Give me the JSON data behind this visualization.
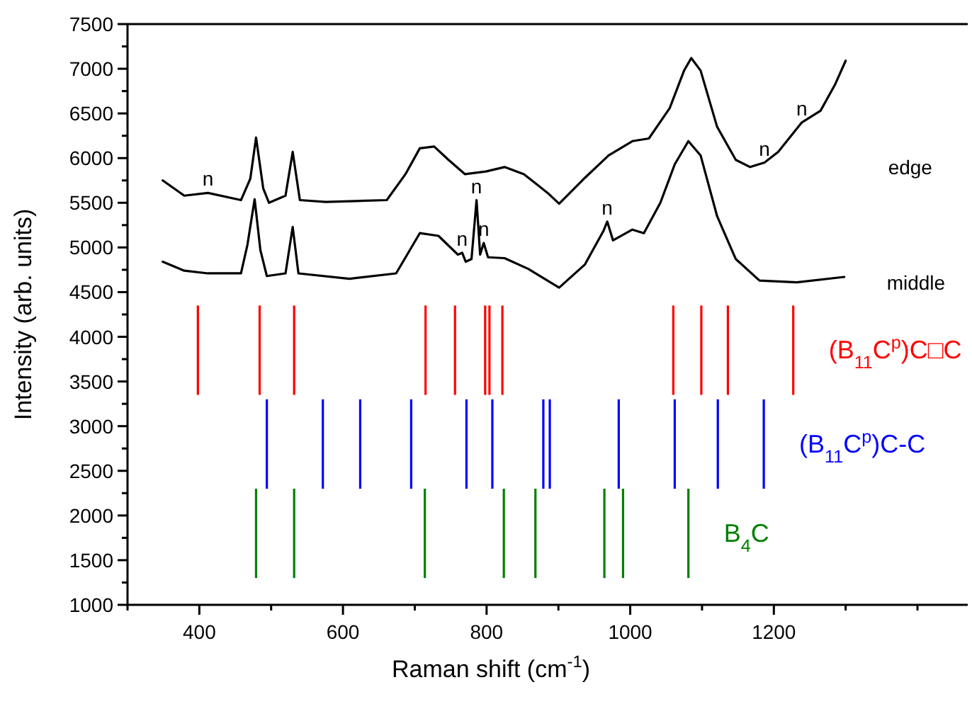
{
  "chart_data": {
    "type": "line",
    "xlabel": "Raman shift (cm$^{-1}$)",
    "ylabel": "Intensity (arb. units)",
    "xlim": [
      300,
      1470
    ],
    "ylim": [
      1000,
      7500
    ],
    "xticks": [
      {
        "value": 300,
        "label": null
      },
      400,
      {
        "value": 500,
        "label": null
      },
      600,
      {
        "value": 700,
        "label": null
      },
      800,
      {
        "value": 900,
        "label": null
      },
      1000,
      {
        "value": 1100,
        "label": null
      },
      1200,
      {
        "value": 1300,
        "label": null
      },
      {
        "value": 1400,
        "label": null
      }
    ],
    "yticks": [
      1000,
      {
        "value": 1250,
        "label": null
      },
      1500,
      {
        "value": 1750,
        "label": null
      },
      2000,
      {
        "value": 2250,
        "label": null
      },
      2500,
      {
        "value": 2750,
        "label": null
      },
      3000,
      {
        "value": 3250,
        "label": null
      },
      3500,
      {
        "value": 3750,
        "label": null
      },
      4000,
      {
        "value": 4250,
        "label": null
      },
      4500,
      {
        "value": 4750,
        "label": null
      },
      5000,
      {
        "value": 5250,
        "label": null
      },
      5500,
      {
        "value": 5750,
        "label": null
      },
      6000,
      {
        "value": 6250,
        "label": null
      },
      6500,
      {
        "value": 6750,
        "label": null
      },
      7000,
      {
        "value": 7250,
        "label": null
      },
      7500
    ],
    "grid": false,
    "series": [
      {
        "name": "edge",
        "color": "#000000",
        "x": [
          349,
          379,
          412,
          458,
          471,
          479,
          489,
          497,
          520,
          530,
          540,
          576,
          661,
          687,
          707,
          727,
          747,
          770,
          799,
          825,
          852,
          885,
          901,
          937,
          970,
          1003,
          1026,
          1055,
          1075,
          1085,
          1098,
          1121,
          1147,
          1167,
          1187,
          1206,
          1239,
          1265,
          1285,
          1300
        ],
        "values": [
          5750,
          5580,
          5610,
          5530,
          5770,
          6230,
          5660,
          5500,
          5580,
          6070,
          5530,
          5510,
          5530,
          5820,
          6110,
          6130,
          5980,
          5820,
          5850,
          5900,
          5820,
          5610,
          5490,
          5780,
          6030,
          6190,
          6220,
          6560,
          6980,
          7120,
          6980,
          6350,
          5980,
          5900,
          5950,
          6070,
          6400,
          6530,
          6820,
          7090
        ]
      },
      {
        "name": "middle",
        "color": "#000000",
        "x": [
          349,
          379,
          412,
          458,
          467,
          477,
          485,
          494,
          520,
          530,
          538,
          609,
          674,
          707,
          733,
          760,
          766,
          771,
          779,
          786,
          791,
          796,
          802,
          825,
          858,
          901,
          937,
          963,
          968,
          976,
          1003,
          1019,
          1042,
          1062,
          1081,
          1098,
          1121,
          1147,
          1180,
          1232,
          1298
        ],
        "values": [
          4840,
          4740,
          4710,
          4710,
          5030,
          5540,
          4970,
          4680,
          4710,
          5230,
          4710,
          4650,
          4710,
          5160,
          5130,
          4920,
          4940,
          4840,
          4870,
          5530,
          4920,
          5050,
          4890,
          4880,
          4760,
          4550,
          4810,
          5190,
          5290,
          5080,
          5200,
          5160,
          5500,
          5930,
          6190,
          6030,
          5350,
          4870,
          4630,
          4610,
          4670
        ]
      },
      {
        "name": "(B$_{11}$C$^{p}$)C□C",
        "type": "bar",
        "color": "#ff0000",
        "x": [
          398,
          484,
          532,
          715,
          756,
          798,
          804,
          822,
          1060,
          1099,
          1136,
          1227
        ],
        "base": [
          3350,
          3350,
          3350,
          3350,
          3350,
          3350,
          3350,
          3350,
          3350,
          3350,
          3350,
          3350
        ],
        "values": [
          1000,
          1000,
          1000,
          1000,
          1000,
          1000,
          1000,
          1000,
          1000,
          1000,
          1000,
          1000
        ]
      },
      {
        "name": "(B$_{11}$C$^{p}$)C-C",
        "type": "bar",
        "color": "#0000ff",
        "x": [
          494,
          572,
          624,
          695,
          772,
          808,
          879,
          888,
          984,
          1062,
          1122,
          1186
        ],
        "base": [
          2300,
          2300,
          2300,
          2300,
          2300,
          2300,
          2300,
          2300,
          2300,
          2300,
          2300,
          2300
        ],
        "values": [
          1000,
          1000,
          1000,
          1000,
          1000,
          1000,
          1000,
          1000,
          1000,
          1000,
          1000,
          1000
        ]
      },
      {
        "name": "B$_{4}$C",
        "type": "bar",
        "color": "#008000",
        "x": [
          479,
          532,
          714,
          824,
          868,
          964,
          990,
          1081
        ],
        "base": [
          1300,
          1300,
          1300,
          1300,
          1300,
          1300,
          1300,
          1300
        ],
        "values": [
          1000,
          1000,
          1000,
          1000,
          1000,
          1000,
          1000,
          1000
        ]
      }
    ],
    "annotations": [
      {
        "text": "n",
        "x": 412,
        "y": 5610
      },
      {
        "text": "n",
        "x": 766,
        "y": 4940
      },
      {
        "text": "n",
        "x": 786,
        "y": 5530
      },
      {
        "text": "n",
        "x": 796,
        "y": 5050
      },
      {
        "text": "n",
        "x": 968,
        "y": 5290
      },
      {
        "text": "n",
        "x": 1187,
        "y": 5950
      },
      {
        "text": "n",
        "x": 1239,
        "y": 6400
      }
    ]
  }
}
